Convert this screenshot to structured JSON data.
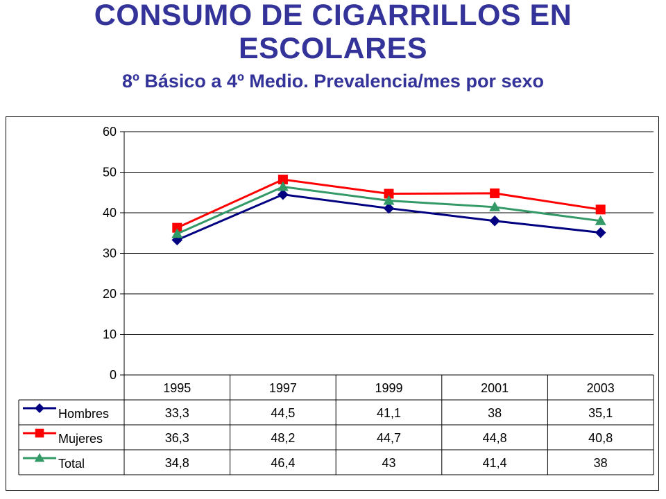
{
  "page": {
    "title_line1": "CONSUMO DE CIGARRILLOS EN",
    "title_line2": "ESCOLARES",
    "subtitle": "8º Básico a 4º Medio. Prevalencia/mes por sexo"
  },
  "chart_data": {
    "type": "line",
    "title": "CONSUMO DE CIGARRILLOS EN ESCOLARES",
    "subtitle": "8º Básico a 4º Medio. Prevalencia/mes por sexo",
    "categories": [
      "1995",
      "1997",
      "1999",
      "2001",
      "2003"
    ],
    "ylim": [
      0,
      60
    ],
    "yticks": [
      0,
      10,
      20,
      30,
      40,
      50,
      60
    ],
    "xlabel": "",
    "ylabel": "",
    "grid": true,
    "legend_placement": "data-table-left",
    "series": [
      {
        "name": "Hombres",
        "values": [
          33.3,
          44.5,
          41.1,
          38,
          35.1
        ],
        "labels": [
          "33,3",
          "44,5",
          "41,1",
          "38",
          "35,1"
        ],
        "color": "#000080",
        "marker": "diamond"
      },
      {
        "name": "Mujeres",
        "values": [
          36.3,
          48.2,
          44.7,
          44.8,
          40.8
        ],
        "labels": [
          "36,3",
          "48,2",
          "44,7",
          "44,8",
          "40,8"
        ],
        "color": "#ff0000",
        "marker": "square"
      },
      {
        "name": "Total",
        "values": [
          34.8,
          46.4,
          43,
          41.4,
          38
        ],
        "labels": [
          "34,8",
          "46,4",
          "43",
          "41,4",
          "38"
        ],
        "color": "#339966",
        "marker": "triangle"
      }
    ]
  }
}
